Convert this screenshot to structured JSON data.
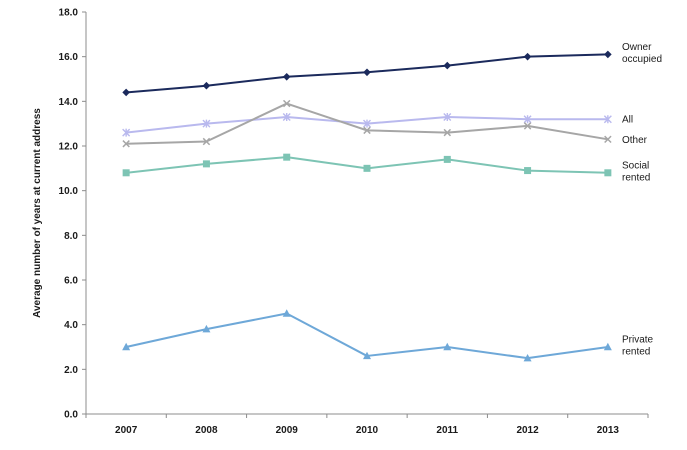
{
  "chart_data": {
    "type": "line",
    "title": "",
    "xlabel": "",
    "ylabel": "Average number of years at current address",
    "ylim": [
      0,
      18
    ],
    "y_ticks": [
      "0.0",
      "2.0",
      "4.0",
      "6.0",
      "8.0",
      "10.0",
      "12.0",
      "14.0",
      "16.0",
      "18.0"
    ],
    "categories": [
      "2007",
      "2008",
      "2009",
      "2010",
      "2011",
      "2012",
      "2013"
    ],
    "grid": false,
    "legend": "none (series labelled at right end of lines)",
    "series": [
      {
        "name": "Owner occupied",
        "label_lines": [
          "Owner",
          "occupied"
        ],
        "values": [
          14.4,
          14.7,
          15.1,
          15.3,
          15.6,
          16.0,
          16.1
        ],
        "color": "#1b2a5c",
        "marker": "diamond"
      },
      {
        "name": "All",
        "label_lines": [
          "All"
        ],
        "values": [
          12.6,
          13.0,
          13.3,
          13.0,
          13.3,
          13.2,
          13.2
        ],
        "color": "#b9b9ee",
        "marker": "star"
      },
      {
        "name": "Other",
        "label_lines": [
          "Other"
        ],
        "values": [
          12.1,
          12.2,
          13.9,
          12.7,
          12.6,
          12.9,
          12.3
        ],
        "color": "#a6a6a6",
        "marker": "x"
      },
      {
        "name": "Social rented",
        "label_lines": [
          "Social",
          "rented"
        ],
        "values": [
          10.8,
          11.2,
          11.5,
          11.0,
          11.4,
          10.9,
          10.8
        ],
        "color": "#7dc4b4",
        "marker": "square"
      },
      {
        "name": "Private rented",
        "label_lines": [
          "Private",
          "rented"
        ],
        "values": [
          3.0,
          3.8,
          4.5,
          2.6,
          3.0,
          2.5,
          3.0
        ],
        "color": "#6ea8d8",
        "marker": "triangle"
      }
    ]
  }
}
